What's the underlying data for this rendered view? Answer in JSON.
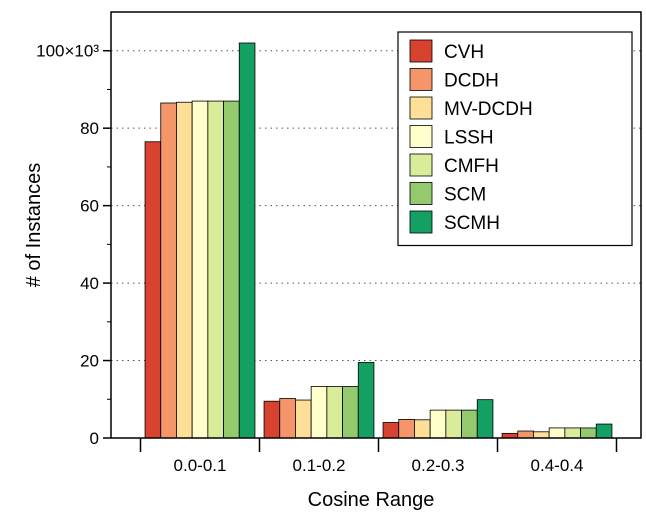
{
  "chart_data": {
    "type": "bar",
    "title": "",
    "xlabel": "Cosine Range",
    "ylabel": "# of Instances",
    "y_multiplier_label": "×10³",
    "categories": [
      "0.0-0.1",
      "0.1-0.2",
      "0.2-0.3",
      "0.4-0.4"
    ],
    "ylim": [
      0,
      110
    ],
    "yticks": [
      0,
      20,
      40,
      60,
      80,
      100
    ],
    "ytick_labels": [
      "0",
      "20",
      "40",
      "60",
      "80",
      "100×10³"
    ],
    "grid": "horizontal dotted",
    "legend_position": "top-right",
    "series": [
      {
        "name": "CVH",
        "color": "#d8432f",
        "values": [
          76.5,
          9.5,
          4.0,
          1.2
        ]
      },
      {
        "name": "DCDH",
        "color": "#f4956a",
        "values": [
          86.5,
          10.2,
          4.8,
          1.8
        ]
      },
      {
        "name": "MV-DCDH",
        "color": "#fddf98",
        "values": [
          86.7,
          9.8,
          4.7,
          1.6
        ]
      },
      {
        "name": "LSSH",
        "color": "#ffffcc",
        "values": [
          87.0,
          13.3,
          7.2,
          2.6
        ]
      },
      {
        "name": "CMFH",
        "color": "#d9ec99",
        "values": [
          87.0,
          13.3,
          7.2,
          2.6
        ]
      },
      {
        "name": "SCM",
        "color": "#94c96e",
        "values": [
          87.0,
          13.3,
          7.2,
          2.6
        ]
      },
      {
        "name": "SCMH",
        "color": "#15a063",
        "values": [
          102.0,
          19.5,
          9.9,
          3.6
        ]
      }
    ]
  }
}
